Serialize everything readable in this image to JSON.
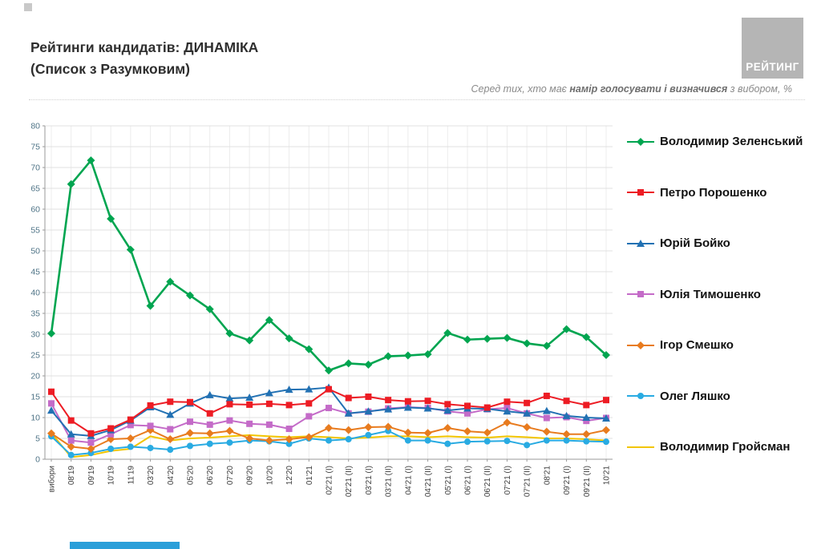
{
  "header": {
    "title_line1": "Рейтинги кандидатів: ДИНАМІКА",
    "title_line2": "(Список з Разумковим)",
    "logo_text": "РЕЙТИНГ"
  },
  "subtitle": {
    "prefix": "Серед тих, хто має ",
    "bold": "намір голосувати і визначився",
    "suffix": " з вибором, %"
  },
  "chart_data": {
    "type": "line",
    "title": "Рейтинги кандидатів: ДИНАМІКА (Список з Разумковим)",
    "subtitle": "Серед тих, хто має намір голосувати і визначився з вибором, %",
    "ylim": [
      0,
      80
    ],
    "ytick_step": 5,
    "grid": true,
    "legend_position": "right",
    "categories": [
      "вибори",
      "08'19",
      "09'19",
      "10'19",
      "11'19",
      "03'20",
      "04'20",
      "05'20",
      "06'20",
      "07'20",
      "09'20",
      "10'20",
      "12'20",
      "01'21",
      "02'21 (I)",
      "02'21 (II)",
      "03'21 (I)",
      "03'21 (II)",
      "04'21 (I)",
      "04'21 (II)",
      "05'21 (I)",
      "06'21 (I)",
      "06'21 (II)",
      "07'21 (I)",
      "07'21 (II)",
      "08'21",
      "09'21 (I)",
      "09'21 (II)",
      "10'21"
    ],
    "series": [
      {
        "name": "Володимир Зеленський",
        "color": "#00A550",
        "marker": "diamond",
        "line_width": 2.6,
        "values": [
          30.2,
          66,
          71.7,
          57.7,
          50.3,
          36.8,
          42.6,
          39.3,
          36,
          30.2,
          28.5,
          33.4,
          29,
          26.4,
          21.3,
          23,
          22.7,
          24.7,
          24.9,
          25.2,
          30.3,
          28.7,
          28.9,
          29.1,
          27.8,
          27.2,
          31.2,
          29.3,
          25
        ]
      },
      {
        "name": "Петро Порошенко",
        "color": "#ED1C24",
        "marker": "square",
        "line_width": 2,
        "values": [
          16.2,
          9.3,
          6.2,
          7.4,
          9.5,
          12.9,
          13.8,
          13.7,
          11,
          13.2,
          13.1,
          13.3,
          13,
          13.4,
          16.8,
          14.7,
          15,
          14.2,
          13.9,
          14,
          13.2,
          12.8,
          12.4,
          13.8,
          13.5,
          15.2,
          14,
          13,
          14.2
        ]
      },
      {
        "name": "Юрій Бойко",
        "color": "#2271B3",
        "marker": "triangle",
        "line_width": 2,
        "values": [
          11.7,
          6,
          5.6,
          7,
          9.3,
          12.5,
          10.7,
          13.4,
          15.4,
          14.6,
          14.8,
          15.9,
          16.7,
          16.8,
          17.2,
          11,
          11.5,
          12,
          12.4,
          12.2,
          11.7,
          12.2,
          12.1,
          11.5,
          11,
          11.6,
          10.4,
          10,
          9.8
        ]
      },
      {
        "name": "Юлія Тимошенко",
        "color": "#C46BC8",
        "marker": "square",
        "line_width": 2,
        "values": [
          13.4,
          4.5,
          4,
          6,
          8.2,
          8,
          7.2,
          9,
          8.3,
          9.3,
          8.5,
          8.3,
          7.3,
          10.3,
          12.3,
          11,
          11.4,
          12.2,
          12.5,
          12.3,
          11.5,
          11,
          12,
          12.3,
          11,
          9.9,
          10.1,
          9.2,
          9.9
        ]
      },
      {
        "name": "Ігор Смешко",
        "color": "#E87B1E",
        "marker": "diamond",
        "line_width": 2,
        "values": [
          6.2,
          3,
          2.5,
          4.8,
          5,
          7,
          4.8,
          6.3,
          6.2,
          6.8,
          5,
          4.5,
          4.8,
          5.3,
          7.5,
          7,
          7.7,
          7.8,
          6.4,
          6.3,
          7.5,
          6.7,
          6.4,
          8.8,
          7.7,
          6.6,
          6,
          6,
          7
        ]
      },
      {
        "name": "Олег Ляшко",
        "color": "#29ABE2",
        "marker": "circle",
        "line_width": 2,
        "values": [
          5.5,
          1,
          1.5,
          2.5,
          3,
          2.7,
          2.3,
          3.2,
          3.7,
          4,
          4.5,
          4.3,
          3.7,
          5,
          4.5,
          4.8,
          5.8,
          6.8,
          4.5,
          4.5,
          3.7,
          4.2,
          4.3,
          4.4,
          3.4,
          4.5,
          4.5,
          4.3,
          4.2
        ]
      },
      {
        "name": "Володимир Гройсман",
        "color": "#F2C500",
        "marker": "none",
        "line_width": 2,
        "values": [
          6.3,
          0.5,
          1,
          2,
          2.5,
          5.5,
          4.5,
          5,
          5.2,
          5.5,
          5.8,
          5.5,
          5.3,
          5.5,
          5.3,
          5,
          5.2,
          5.5,
          5.5,
          5.3,
          5.5,
          5.3,
          5.2,
          5.5,
          5.3,
          5,
          5,
          4.8,
          4.5
        ]
      }
    ]
  }
}
